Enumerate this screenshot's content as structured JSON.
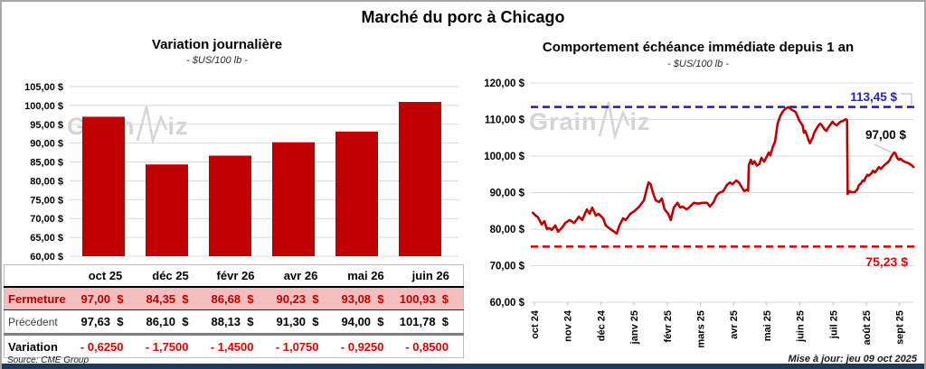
{
  "page": {
    "title": "Marché du porc à Chicago",
    "source_note": "Source: CME Group",
    "update_note": "Mise à jour: jeu 09 oct 2025",
    "watermark": {
      "part1": "Grain",
      "part2": "iz"
    }
  },
  "colors": {
    "dark_red": "#C00000",
    "bright_red": "#E80000",
    "blue": "#2222CC",
    "grid": "#D9D9D9",
    "tick": "#BFBFBF",
    "leader": "#BFBFBF",
    "pink_row": "#F5BEBE",
    "navy": "#1F3864"
  },
  "table": {
    "columns": [
      "oct 25",
      "déc 25",
      "févr 26",
      "avr 26",
      "mai 26",
      "juin 26"
    ],
    "rows": [
      {
        "style": "fermeture",
        "label": "Fermeture",
        "values": [
          "97,00  $",
          "84,35  $",
          "86,68  $",
          "90,23  $",
          "93,08  $",
          "100,93  $"
        ]
      },
      {
        "style": "precedent",
        "label": "Précédent",
        "values": [
          "97,63  $",
          "86,10  $",
          "88,13  $",
          "91,30  $",
          "94,00  $",
          "101,78  $"
        ]
      },
      {
        "style": "variation",
        "label": "Variation",
        "values": [
          "- 0,6250",
          "- 1,7500",
          "- 1,4500",
          "- 1,0750",
          "- 0,9250",
          "- 0,8500"
        ]
      }
    ]
  },
  "chart_data": [
    {
      "type": "bar",
      "title": "Variation journalière",
      "subtitle": "- $US/100 lb -",
      "categories": [
        "oct 25",
        "déc 25",
        "févr 26",
        "avr 26",
        "mai 26",
        "juin 26"
      ],
      "values": [
        97.0,
        84.35,
        86.68,
        90.23,
        93.08,
        100.93
      ],
      "ylim": [
        60,
        105
      ],
      "bar_color": "#C00000",
      "grid": true,
      "yticks": [
        {
          "v": 105,
          "label": "105,00 $"
        },
        {
          "v": 100,
          "label": "100,00 $"
        },
        {
          "v": 95,
          "label": "95,00 $"
        },
        {
          "v": 90,
          "label": "90,00 $"
        },
        {
          "v": 85,
          "label": "85,00 $"
        },
        {
          "v": 80,
          "label": "80,00 $"
        },
        {
          "v": 75,
          "label": "75,00 $"
        },
        {
          "v": 70,
          "label": "70,00 $"
        },
        {
          "v": 65,
          "label": "65,00 $"
        },
        {
          "v": 60,
          "label": "60,00 $"
        }
      ]
    },
    {
      "type": "line",
      "title": "Comportement échéance immédiate depuis 1 an",
      "subtitle": "- $US/100 lb -",
      "line_color": "#C00000",
      "ylim": [
        60,
        120
      ],
      "grid": true,
      "yticks": [
        {
          "v": 120,
          "label": "120,00 $"
        },
        {
          "v": 110,
          "label": "110,00 $"
        },
        {
          "v": 100,
          "label": "100,00 $"
        },
        {
          "v": 90,
          "label": "90,00 $"
        },
        {
          "v": 80,
          "label": "80,00 $"
        },
        {
          "v": 70,
          "label": "70,00 $"
        },
        {
          "v": 60,
          "label": "60,00 $"
        }
      ],
      "x_labels": [
        "oct 24",
        "nov 24",
        "déc 24",
        "janv 25",
        "févr 25",
        "mars 25",
        "avr 25",
        "mai 25",
        "juin 25",
        "juil 25",
        "août 25",
        "sept 25"
      ],
      "ref_lines": [
        {
          "value": 113.45,
          "label": "113,45 $",
          "color": "#2222CC"
        },
        {
          "value": 75.23,
          "label": "75,23 $",
          "color": "#E80000"
        }
      ],
      "annotation": {
        "label": "97,00 $",
        "value": 97.0
      },
      "points": [
        [
          -0.05,
          84.5
        ],
        [
          0.05,
          83.6
        ],
        [
          0.1,
          83.3
        ],
        [
          0.22,
          81.3
        ],
        [
          0.3,
          82.2
        ],
        [
          0.38,
          80.0
        ],
        [
          0.45,
          80.3
        ],
        [
          0.52,
          79.8
        ],
        [
          0.63,
          81.0
        ],
        [
          0.71,
          79.3
        ],
        [
          0.84,
          80.5
        ],
        [
          0.93,
          81.7
        ],
        [
          1.06,
          82.5
        ],
        [
          1.2,
          81.7
        ],
        [
          1.34,
          83.4
        ],
        [
          1.44,
          82.5
        ],
        [
          1.58,
          85.4
        ],
        [
          1.66,
          84.2
        ],
        [
          1.74,
          85.9
        ],
        [
          1.85,
          83.7
        ],
        [
          1.93,
          84.2
        ],
        [
          2.07,
          83.0
        ],
        [
          2.15,
          81.0
        ],
        [
          2.29,
          80.0
        ],
        [
          2.4,
          79.3
        ],
        [
          2.48,
          78.8
        ],
        [
          2.56,
          81.0
        ],
        [
          2.67,
          83.0
        ],
        [
          2.75,
          82.5
        ],
        [
          2.89,
          84.2
        ],
        [
          3.02,
          85.0
        ],
        [
          3.16,
          86.2
        ],
        [
          3.3,
          87.9
        ],
        [
          3.38,
          90.8
        ],
        [
          3.44,
          92.8
        ],
        [
          3.5,
          92.3
        ],
        [
          3.57,
          90.0
        ],
        [
          3.65,
          87.9
        ],
        [
          3.76,
          87.4
        ],
        [
          3.84,
          88.4
        ],
        [
          3.92,
          85.4
        ],
        [
          4.03,
          84.2
        ],
        [
          4.11,
          82.5
        ],
        [
          4.2,
          85.9
        ],
        [
          4.31,
          87.2
        ],
        [
          4.39,
          85.9
        ],
        [
          4.47,
          86.2
        ],
        [
          4.58,
          85.4
        ],
        [
          4.66,
          85.9
        ],
        [
          4.8,
          87.2
        ],
        [
          4.93,
          87.0
        ],
        [
          5.07,
          87.2
        ],
        [
          5.2,
          87.2
        ],
        [
          5.29,
          86.2
        ],
        [
          5.4,
          87.4
        ],
        [
          5.48,
          89.1
        ],
        [
          5.56,
          89.9
        ],
        [
          5.69,
          90.4
        ],
        [
          5.8,
          92.1
        ],
        [
          5.89,
          92.8
        ],
        [
          5.97,
          92.3
        ],
        [
          6.08,
          93.3
        ],
        [
          6.16,
          92.8
        ],
        [
          6.24,
          91.6
        ],
        [
          6.32,
          90.4
        ],
        [
          6.4,
          90.8
        ],
        [
          6.44,
          90.5
        ],
        [
          6.46,
          97.5
        ],
        [
          6.52,
          99.0
        ],
        [
          6.57,
          97.8
        ],
        [
          6.63,
          98.6
        ],
        [
          6.7,
          97.4
        ],
        [
          6.78,
          97.8
        ],
        [
          6.84,
          99.5
        ],
        [
          6.92,
          98.5
        ],
        [
          7.0,
          99.8
        ],
        [
          7.06,
          101.0
        ],
        [
          7.11,
          100.2
        ],
        [
          7.19,
          102.7
        ],
        [
          7.25,
          104.0
        ],
        [
          7.33,
          109.0
        ],
        [
          7.41,
          111.0
        ],
        [
          7.49,
          112.3
        ],
        [
          7.57,
          113.0
        ],
        [
          7.64,
          113.4
        ],
        [
          7.71,
          113.0
        ],
        [
          7.77,
          112.6
        ],
        [
          7.85,
          112.2
        ],
        [
          7.88,
          111.9
        ],
        [
          7.98,
          109.7
        ],
        [
          8.04,
          108.9
        ],
        [
          8.08,
          108.4
        ],
        [
          8.12,
          106.4
        ],
        [
          8.16,
          106.9
        ],
        [
          8.2,
          106.0
        ],
        [
          8.26,
          104.4
        ],
        [
          8.3,
          103.5
        ],
        [
          8.39,
          105.2
        ],
        [
          8.43,
          106.4
        ],
        [
          8.48,
          107.2
        ],
        [
          8.56,
          108.4
        ],
        [
          8.61,
          108.9
        ],
        [
          8.66,
          108.4
        ],
        [
          8.75,
          107.2
        ],
        [
          8.8,
          106.9
        ],
        [
          8.84,
          107.6
        ],
        [
          8.94,
          108.9
        ],
        [
          8.98,
          109.4
        ],
        [
          9.03,
          108.9
        ],
        [
          9.1,
          108.4
        ],
        [
          9.16,
          108.9
        ],
        [
          9.22,
          109.4
        ],
        [
          9.3,
          109.6
        ],
        [
          9.38,
          110.1
        ],
        [
          9.42,
          109.8
        ],
        [
          9.44,
          89.6
        ],
        [
          9.5,
          90.4
        ],
        [
          9.56,
          90.1
        ],
        [
          9.65,
          90.1
        ],
        [
          9.73,
          90.9
        ],
        [
          9.78,
          92.1
        ],
        [
          9.84,
          92.5
        ],
        [
          9.89,
          93.3
        ],
        [
          9.93,
          93.1
        ],
        [
          9.98,
          94.1
        ],
        [
          10.03,
          94.9
        ],
        [
          10.07,
          94.6
        ],
        [
          10.16,
          95.3
        ],
        [
          10.2,
          96.0
        ],
        [
          10.26,
          95.5
        ],
        [
          10.33,
          96.3
        ],
        [
          10.38,
          97.0
        ],
        [
          10.44,
          96.5
        ],
        [
          10.52,
          97.3
        ],
        [
          10.58,
          97.8
        ],
        [
          10.65,
          98.3
        ],
        [
          10.71,
          99.0
        ],
        [
          10.75,
          99.8
        ],
        [
          10.84,
          101.0
        ],
        [
          10.88,
          100.7
        ],
        [
          10.93,
          99.5
        ],
        [
          10.98,
          99.0
        ],
        [
          11.02,
          99.3
        ],
        [
          11.12,
          98.6
        ],
        [
          11.2,
          98.3
        ],
        [
          11.28,
          98.0
        ],
        [
          11.38,
          97.4
        ],
        [
          11.42,
          97.0
        ]
      ]
    }
  ]
}
